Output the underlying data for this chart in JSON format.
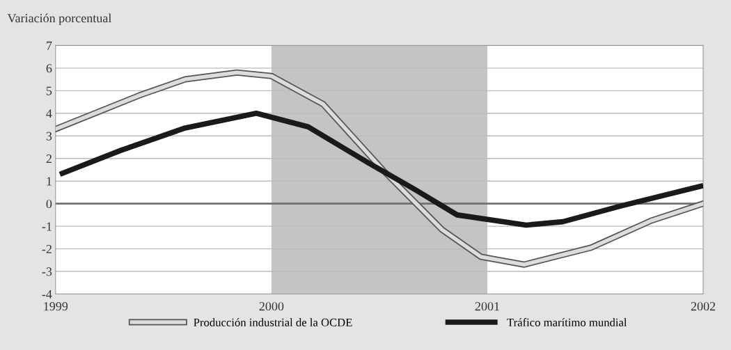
{
  "chart_data": {
    "type": "line",
    "ylabel": "Variación porcentual",
    "series": [
      {
        "name": "Producción industrial de la OCDE",
        "color": "#dcdcdc",
        "x": [
          1999.0,
          1999.39,
          1999.6,
          1999.84,
          2000.0,
          2000.24,
          2000.52,
          2000.79,
          2000.97,
          2001.17,
          2001.48,
          2001.76,
          2002.0
        ],
        "values": [
          3.3,
          4.8,
          5.5,
          5.8,
          5.65,
          4.4,
          1.45,
          -1.15,
          -2.35,
          -2.7,
          -1.95,
          -0.75,
          0.0
        ]
      },
      {
        "name": "Tráfico marítimo mundial",
        "color": "#1a1a1a",
        "x": [
          1999.02,
          1999.3,
          1999.6,
          1999.93,
          2000.17,
          2000.45,
          2000.66,
          2000.86,
          2001.18,
          2001.35,
          2001.62,
          2002.0
        ],
        "values": [
          1.3,
          2.35,
          3.35,
          4.0,
          3.4,
          1.8,
          0.65,
          -0.5,
          -0.95,
          -0.8,
          -0.1,
          0.8
        ]
      }
    ],
    "xlim": [
      1999,
      2002
    ],
    "xticks": [
      1999,
      2000,
      2001,
      2002
    ],
    "ylim": [
      -4,
      7
    ],
    "yticks": [
      -4,
      -3,
      -2,
      -1,
      0,
      1,
      2,
      3,
      4,
      5,
      6,
      7
    ],
    "ref_lines": [
      {
        "axis": "y",
        "value": 0,
        "color": "#707070"
      }
    ],
    "bands": [
      {
        "axis": "x",
        "from": 2000,
        "to": 2001,
        "color": "#c4c4c4"
      }
    ],
    "grid": "y",
    "legend": "bottom",
    "marker": "none",
    "line_style": "solid"
  }
}
